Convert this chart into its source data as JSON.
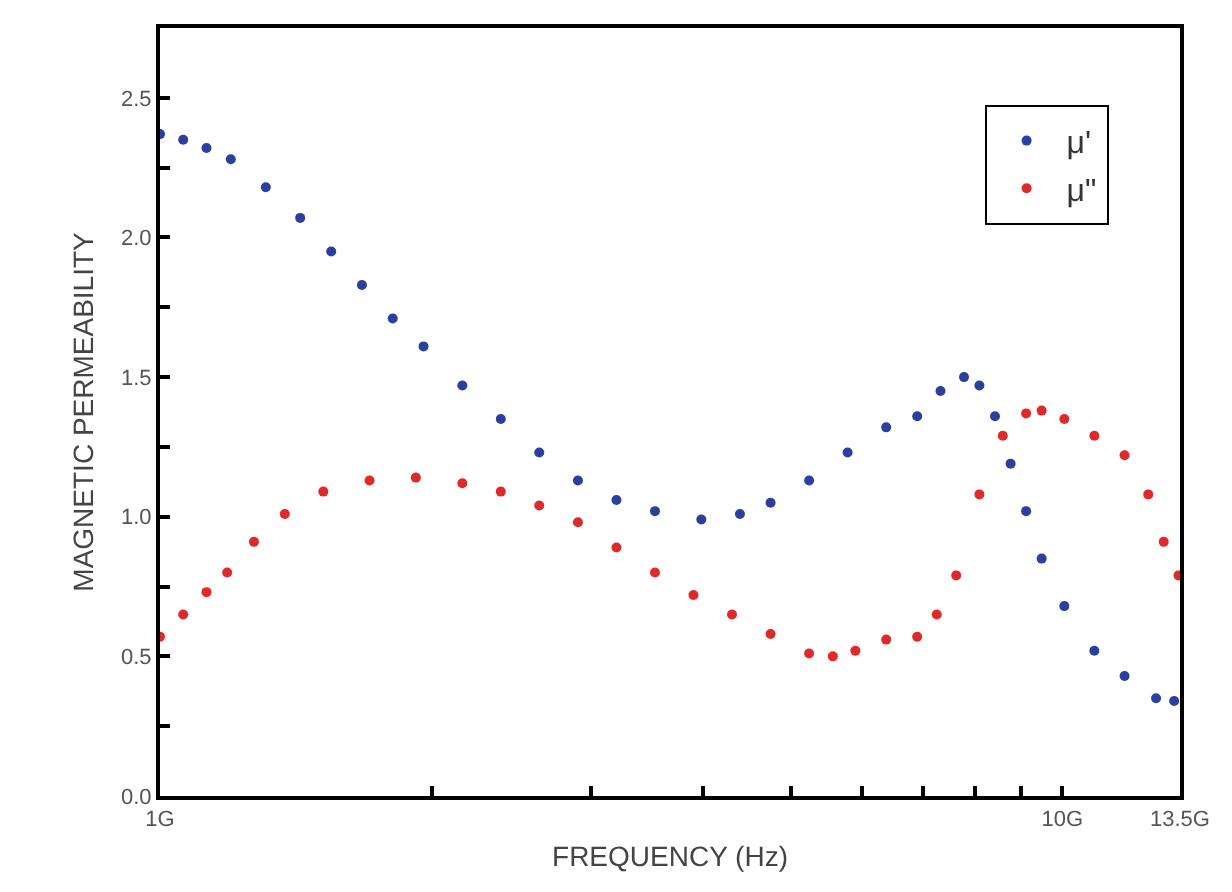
{
  "chart_data": {
    "type": "scatter",
    "xlabel": "FREQUENCY (Hz)",
    "ylabel": "MAGNETIC PERMEABILITY",
    "log": "x",
    "marker": "circle",
    "grid": false,
    "legend": "top right",
    "xlim": [
      1,
      13.5
    ],
    "ylim": [
      0,
      2.75
    ],
    "xticks": [
      {
        "value": 1,
        "label": "1G"
      },
      {
        "value": 2,
        "label": null
      },
      {
        "value": 3,
        "label": null
      },
      {
        "value": 4,
        "label": null
      },
      {
        "value": 5,
        "label": null
      },
      {
        "value": 6,
        "label": null
      },
      {
        "value": 7,
        "label": null
      },
      {
        "value": 8,
        "label": null
      },
      {
        "value": 9,
        "label": null
      },
      {
        "value": 10,
        "label": "10G"
      },
      {
        "value": 13.5,
        "label": "13.5G"
      }
    ],
    "yticks": [
      {
        "value": 0,
        "label": "0.0"
      },
      {
        "value": 0.25,
        "label": null
      },
      {
        "value": 0.5,
        "label": "0.5"
      },
      {
        "value": 0.75,
        "label": null
      },
      {
        "value": 1,
        "label": "1.0"
      },
      {
        "value": 1.25,
        "label": null
      },
      {
        "value": 1.5,
        "label": "1.5"
      },
      {
        "value": 1.75,
        "label": null
      },
      {
        "value": 2,
        "label": "2.0"
      },
      {
        "value": 2.25,
        "label": null
      },
      {
        "value": 2.5,
        "label": "2.5"
      }
    ],
    "series": [
      {
        "name": "μ'",
        "color": "#2b3f9e",
        "x": [
          1.0,
          1.061,
          1.126,
          1.198,
          1.31,
          1.43,
          1.548,
          1.674,
          1.811,
          1.959,
          2.163,
          2.386,
          2.632,
          2.905,
          3.205,
          3.536,
          3.98,
          4.392,
          4.749,
          5.24,
          5.781,
          6.379,
          6.904,
          7.327,
          7.78,
          8.092,
          8.42,
          8.762,
          9.116,
          9.485,
          10.05,
          10.85,
          11.72,
          12.7,
          13.3
        ],
        "values": [
          2.37,
          2.35,
          2.32,
          2.28,
          2.18,
          2.07,
          1.95,
          1.83,
          1.71,
          1.61,
          1.47,
          1.35,
          1.23,
          1.13,
          1.06,
          1.02,
          0.99,
          1.01,
          1.05,
          1.13,
          1.23,
          1.32,
          1.36,
          1.45,
          1.5,
          1.47,
          1.36,
          1.19,
          1.02,
          0.85,
          0.68,
          0.52,
          0.43,
          0.35,
          0.34
        ]
      },
      {
        "name": "μ\"",
        "color": "#e02a2a",
        "x": [
          1.0,
          1.061,
          1.126,
          1.187,
          1.271,
          1.375,
          1.517,
          1.707,
          1.921,
          2.163,
          2.386,
          2.632,
          2.905,
          3.205,
          3.536,
          3.901,
          4.304,
          4.749,
          5.24,
          5.567,
          5.897,
          6.379,
          6.904,
          7.258,
          7.627,
          8.092,
          8.589,
          9.116,
          9.485,
          10.05,
          10.85,
          11.72,
          12.45,
          12.95,
          13.45
        ],
        "values": [
          0.57,
          0.65,
          0.73,
          0.8,
          0.91,
          1.01,
          1.09,
          1.13,
          1.14,
          1.12,
          1.09,
          1.04,
          0.98,
          0.89,
          0.8,
          0.72,
          0.65,
          0.58,
          0.51,
          0.5,
          0.52,
          0.56,
          0.57,
          0.65,
          0.79,
          1.08,
          1.29,
          1.37,
          1.38,
          1.35,
          1.29,
          1.22,
          1.08,
          0.91,
          0.79
        ]
      }
    ]
  }
}
